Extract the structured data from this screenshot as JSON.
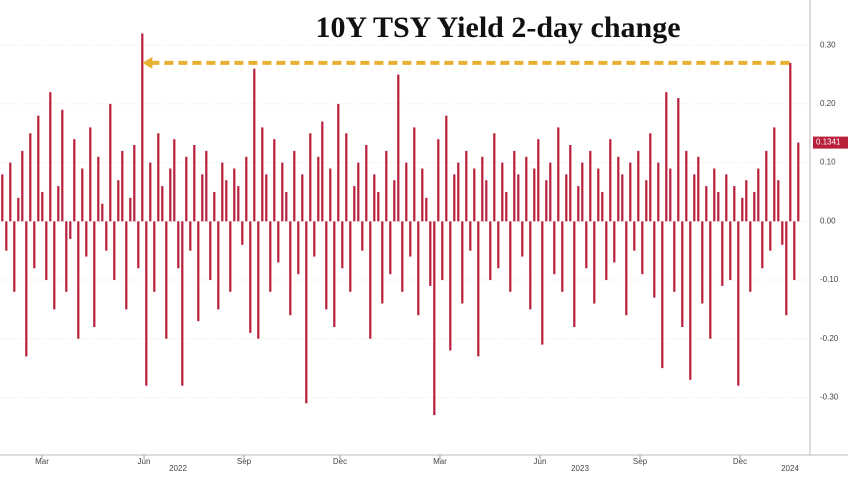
{
  "chart_data": {
    "type": "bar",
    "title": "10Y TSY Yield 2-day change",
    "values": [
      0.08,
      -0.05,
      0.1,
      -0.12,
      0.04,
      0.12,
      -0.23,
      0.15,
      -0.08,
      0.18,
      0.05,
      -0.1,
      0.22,
      -0.15,
      0.06,
      0.19,
      -0.12,
      -0.03,
      0.14,
      -0.2,
      0.09,
      -0.06,
      0.16,
      -0.18,
      0.11,
      0.03,
      -0.05,
      0.2,
      -0.1,
      0.07,
      0.12,
      -0.15,
      0.04,
      0.13,
      -0.08,
      0.32,
      -0.28,
      0.1,
      -0.12,
      0.15,
      0.06,
      -0.2,
      0.09,
      0.14,
      -0.08,
      -0.28,
      0.11,
      -0.05,
      0.13,
      -0.17,
      0.08,
      0.12,
      -0.1,
      0.05,
      -0.15,
      0.1,
      0.07,
      -0.12,
      0.09,
      0.06,
      -0.04,
      0.11,
      -0.19,
      0.26,
      -0.2,
      0.16,
      0.08,
      -0.12,
      0.14,
      -0.07,
      0.1,
      0.05,
      -0.16,
      0.12,
      -0.09,
      0.08,
      -0.31,
      0.15,
      -0.06,
      0.11,
      0.17,
      -0.15,
      0.09,
      -0.18,
      0.2,
      -0.08,
      0.15,
      -0.12,
      0.06,
      0.1,
      -0.05,
      0.13,
      -0.2,
      0.08,
      0.05,
      -0.14,
      0.12,
      -0.09,
      0.07,
      0.25,
      -0.12,
      0.1,
      -0.06,
      0.16,
      -0.16,
      0.09,
      0.04,
      -0.11,
      -0.33,
      0.14,
      -0.1,
      0.18,
      -0.22,
      0.08,
      0.1,
      -0.14,
      0.12,
      -0.05,
      0.09,
      -0.23,
      0.11,
      0.07,
      -0.1,
      0.15,
      -0.08,
      0.1,
      0.05,
      -0.12,
      0.12,
      0.08,
      -0.06,
      0.11,
      -0.15,
      0.09,
      0.14,
      -0.21,
      0.07,
      0.1,
      -0.09,
      0.16,
      -0.12,
      0.08,
      0.13,
      -0.18,
      0.06,
      0.1,
      -0.08,
      0.12,
      -0.14,
      0.09,
      0.05,
      -0.1,
      0.14,
      -0.07,
      0.11,
      0.08,
      -0.16,
      0.1,
      -0.05,
      0.12,
      -0.09,
      0.07,
      0.15,
      -0.13,
      0.1,
      -0.25,
      0.22,
      0.09,
      -0.12,
      0.21,
      -0.18,
      0.12,
      -0.27,
      0.08,
      0.11,
      -0.14,
      0.06,
      -0.2,
      0.09,
      0.05,
      -0.11,
      0.08,
      -0.1,
      0.06,
      -0.28,
      0.04,
      0.07,
      -0.12,
      0.05,
      0.09,
      -0.08,
      0.12,
      -0.05,
      0.16,
      0.07,
      -0.04,
      -0.16,
      0.27,
      -0.1,
      0.1341
    ],
    "color": "#b8203a",
    "reference_line": 0.27,
    "reference_color": "#e8b030",
    "xlim": [
      0,
      200
    ],
    "xticks": [
      {
        "value": 10.5,
        "label": "Mar"
      },
      {
        "value": 36,
        "label": "Jun"
      },
      {
        "value": 61,
        "label": "Sep"
      },
      {
        "value": 85,
        "label": "Dec"
      },
      {
        "value": 110,
        "label": "Mar"
      },
      {
        "value": 135,
        "label": "Jun"
      },
      {
        "value": 160,
        "label": "Sep"
      },
      {
        "value": 185,
        "label": "Dec"
      }
    ],
    "year_ticks": [
      {
        "value": 44.5,
        "label": "2022"
      },
      {
        "value": 145,
        "label": "2023"
      },
      {
        "value": 197.5,
        "label": "2024"
      }
    ],
    "ylim": [
      -0.398,
      0.377
    ],
    "yticks": [
      {
        "value": 0.3,
        "label": "0.30"
      },
      {
        "value": 0.2,
        "label": "0.20"
      },
      {
        "value": 0.1,
        "label": "0.10"
      },
      {
        "value": 0,
        "label": "0.00"
      },
      {
        "value": -0.1,
        "label": "-0.10"
      },
      {
        "value": -0.2,
        "label": "-0.20"
      },
      {
        "value": -0.3,
        "label": "-0.30"
      }
    ],
    "grid": true
  }
}
